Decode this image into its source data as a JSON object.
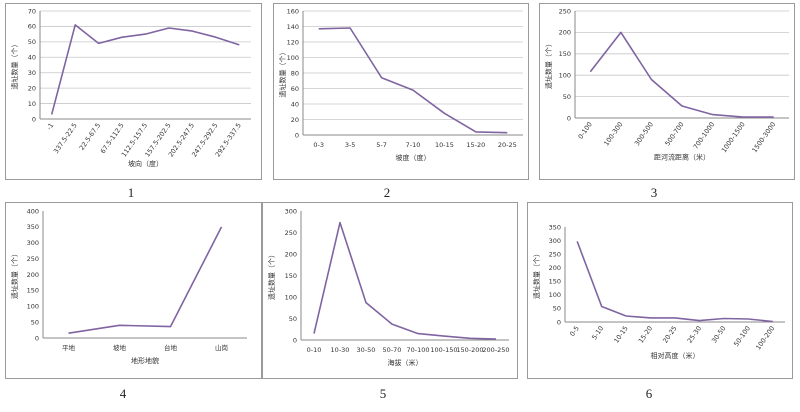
{
  "chart_data": [
    {
      "number": "1",
      "type": "line",
      "xlabel": "坡向（度）",
      "ylabel": "遗址数量（个）",
      "ylim": [
        0,
        70
      ],
      "yticks": [
        0,
        10,
        20,
        30,
        40,
        50,
        60,
        70
      ],
      "categories": [
        "-1",
        "337.5-22.5",
        "22.5-67.5",
        "67.5-112.5",
        "112.5-157.5",
        "157.5-202.5",
        "202.5-247.5",
        "247.5-292.5",
        "292.5-337.5"
      ],
      "values": [
        3,
        61,
        49,
        53,
        55,
        59,
        57,
        53,
        48
      ],
      "rotate_x_labels": true,
      "gridlines": true,
      "color": "#8064a2"
    },
    {
      "number": "2",
      "type": "line",
      "xlabel": "坡度（度）",
      "ylabel": "遗址数量（个）",
      "ylim": [
        0,
        160
      ],
      "yticks": [
        0,
        20,
        40,
        60,
        80,
        100,
        120,
        140,
        160
      ],
      "categories": [
        "0-3",
        "3-5",
        "5-7",
        "7-10",
        "10-15",
        "15-20",
        "20-25"
      ],
      "values": [
        137,
        138,
        74,
        58,
        28,
        4,
        3
      ],
      "rotate_x_labels": false,
      "gridlines": true,
      "color": "#8064a2"
    },
    {
      "number": "3",
      "type": "line",
      "xlabel": "距河流距离（米）",
      "ylabel": "遗址数量（个）",
      "ylim": [
        0,
        250
      ],
      "yticks": [
        0,
        50,
        100,
        150,
        200,
        250
      ],
      "categories": [
        "0-100",
        "100-300",
        "300-500",
        "500-700",
        "700-1000",
        "1000-1500",
        "1500-3000"
      ],
      "values": [
        108,
        200,
        90,
        28,
        8,
        2,
        2
      ],
      "rotate_x_labels": true,
      "gridlines": true,
      "color": "#8064a2"
    },
    {
      "number": "4",
      "type": "line",
      "xlabel": "地形地貌",
      "ylabel": "遗址数量（个）",
      "ylim": [
        0,
        400
      ],
      "yticks": [
        0,
        50,
        100,
        150,
        200,
        250,
        300,
        350,
        400
      ],
      "categories": [
        "平地",
        "坡地",
        "台地",
        "山岗"
      ],
      "values": [
        15,
        40,
        36,
        350
      ],
      "rotate_x_labels": false,
      "gridlines": false,
      "color": "#8064a2"
    },
    {
      "number": "5",
      "type": "line",
      "xlabel": "海拔（米）",
      "ylabel": "遗址数量（个）",
      "ylim": [
        0,
        300
      ],
      "yticks": [
        0,
        50,
        100,
        150,
        200,
        250,
        300
      ],
      "categories": [
        "0-10",
        "10-30",
        "30-50",
        "50-70",
        "70-100",
        "100-150",
        "150-200",
        "200-250"
      ],
      "values": [
        15,
        273,
        87,
        37,
        15,
        9,
        4,
        2
      ],
      "rotate_x_labels": false,
      "gridlines": false,
      "color": "#8064a2"
    },
    {
      "number": "6",
      "type": "line",
      "xlabel": "相对高度（米）",
      "ylabel": "遗址数量（个）",
      "ylim": [
        0,
        350
      ],
      "yticks": [
        0,
        50,
        100,
        150,
        200,
        250,
        300,
        350
      ],
      "categories": [
        "0-5",
        "5-10",
        "10-15",
        "15-20",
        "20-25",
        "25-30",
        "30-50",
        "50-100",
        "100-200"
      ],
      "values": [
        297,
        57,
        22,
        15,
        15,
        5,
        13,
        11,
        2
      ],
      "rotate_x_labels": true,
      "gridlines": false,
      "color": "#8064a2"
    }
  ]
}
